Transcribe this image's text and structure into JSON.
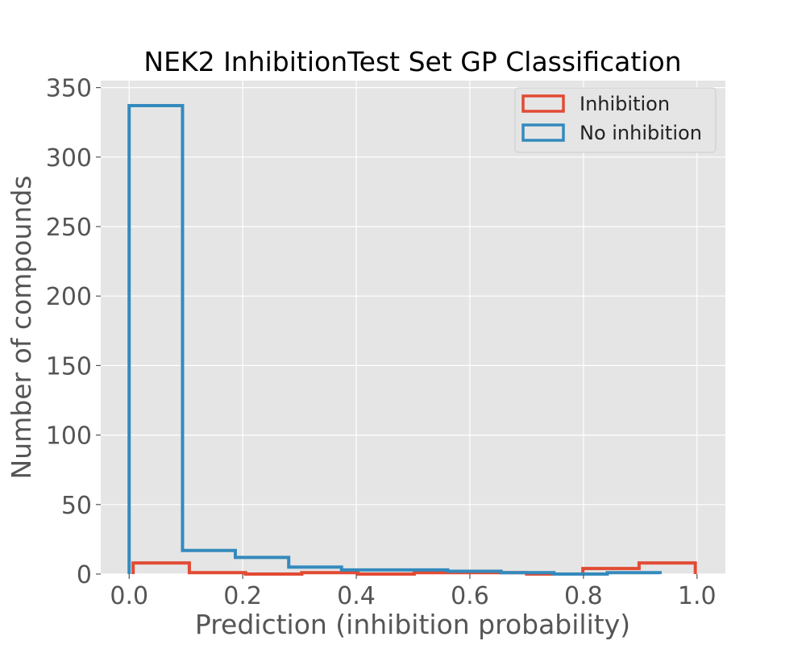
{
  "chart_data": {
    "type": "histogram",
    "title": "NEK2 InhibitionTest Set GP Classification",
    "xlabel": "Prediction (inhibition probability)",
    "ylabel": "Number of compounds",
    "xlim": [
      -0.05,
      1.05
    ],
    "ylim": [
      0,
      355
    ],
    "xticks": [
      0.0,
      0.2,
      0.4,
      0.6,
      0.8,
      1.0
    ],
    "xtick_labels": [
      "0.0",
      "0.2",
      "0.4",
      "0.6",
      "0.8",
      "1.0"
    ],
    "yticks": [
      0,
      50,
      100,
      150,
      200,
      250,
      300,
      350
    ],
    "ytick_labels": [
      "0",
      "50",
      "100",
      "150",
      "200",
      "250",
      "300",
      "350"
    ],
    "grid": true,
    "legend_position": "top-right",
    "series": [
      {
        "name": "Inhibition",
        "color": "#E24A33",
        "bin_edges": [
          0.007,
          0.106,
          0.205,
          0.304,
          0.403,
          0.502,
          0.601,
          0.7,
          0.799,
          0.898,
          0.997
        ],
        "counts": [
          8,
          1,
          0,
          1,
          0,
          1,
          1,
          0,
          4,
          8
        ]
      },
      {
        "name": "No inhibition",
        "color": "#348ABD",
        "bin_edges": [
          0.0,
          0.094,
          0.187,
          0.281,
          0.374,
          0.468,
          0.561,
          0.655,
          0.748,
          0.842,
          0.935
        ],
        "counts": [
          337,
          17,
          12,
          5,
          3,
          3,
          2,
          1,
          0,
          1
        ]
      }
    ]
  }
}
